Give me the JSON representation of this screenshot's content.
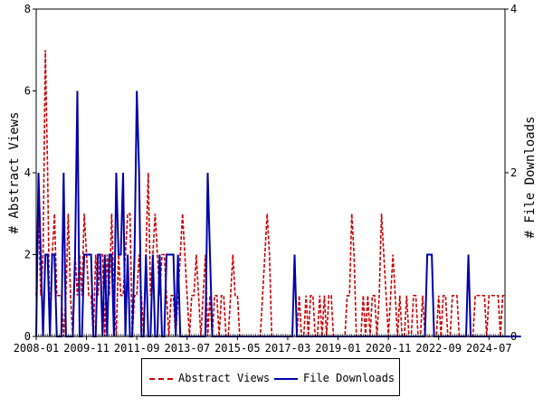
{
  "chart_data": {
    "type": "line",
    "xlabel": "",
    "ylabel": "# Abstract Views",
    "ylabel_right": "# File Downloads",
    "ylim": [
      0,
      8
    ],
    "ylim_right": [
      0,
      4
    ],
    "yticks": [
      "0",
      "2",
      "4",
      "6",
      "8"
    ],
    "yticks_right": [
      "0",
      "2",
      "4"
    ],
    "x_tick_labels": [
      "2008-01",
      "2009-11",
      "2011-09",
      "2013-07",
      "2015-05",
      "2017-03",
      "2019-01",
      "2020-11",
      "2022-09",
      "2024-07"
    ],
    "x_start": "2008-01",
    "x_end": "2025-12",
    "grid": false,
    "legend_position": "bottom",
    "series": [
      {
        "name": "Abstract Views",
        "axis": "left",
        "color": "#cc0000",
        "style": "dashed",
        "values": [
          1,
          3,
          1,
          2,
          7,
          4,
          0,
          2,
          3,
          1,
          1,
          1,
          0,
          1,
          3,
          1,
          0,
          2,
          1,
          2,
          1,
          3,
          2,
          1,
          1,
          0,
          2,
          1,
          2,
          2,
          0,
          2,
          1,
          3,
          1,
          0,
          2,
          1,
          1,
          2,
          3,
          3,
          0,
          1,
          1,
          2,
          1,
          0,
          2,
          4,
          1,
          2,
          3,
          2,
          1,
          2,
          2,
          1,
          0,
          1,
          1,
          0,
          1,
          2,
          3,
          2,
          1,
          0,
          1,
          1,
          2,
          1,
          0,
          1,
          2,
          0,
          1,
          0,
          1,
          1,
          0,
          1,
          1,
          0,
          0,
          1,
          2,
          1,
          1,
          0,
          0,
          0,
          0,
          0,
          0,
          0,
          0,
          0,
          0,
          1,
          2,
          3,
          2,
          0,
          0,
          0,
          0,
          0,
          0,
          0,
          0,
          0,
          0,
          0,
          0,
          1,
          0,
          0,
          1,
          0,
          1,
          1,
          0,
          0,
          1,
          0,
          1,
          0,
          1,
          1,
          0,
          0,
          0,
          0,
          0,
          0,
          1,
          1,
          3,
          2,
          0,
          0,
          0,
          1,
          0,
          1,
          0,
          1,
          1,
          0,
          1,
          3,
          2,
          1,
          0,
          1,
          2,
          1,
          0,
          1,
          0,
          0,
          1,
          0,
          0,
          1,
          1,
          0,
          0,
          1,
          0,
          0,
          0,
          0,
          0,
          0,
          1,
          0,
          1,
          1,
          0,
          0,
          1,
          1,
          1,
          0,
          0,
          0,
          0,
          0,
          0,
          0,
          1,
          1,
          1,
          1,
          1,
          0,
          1,
          1,
          1,
          1,
          1,
          0,
          1,
          1
        ]
      },
      {
        "name": "File Downloads",
        "axis": "right",
        "color": "#0000aa",
        "style": "solid",
        "values": [
          0,
          2,
          1,
          0,
          1,
          1,
          0,
          1,
          1,
          0,
          0,
          0,
          2,
          0,
          0,
          0,
          0,
          1,
          3,
          0,
          0,
          1,
          1,
          1,
          1,
          0,
          0,
          1,
          1,
          0,
          1,
          0,
          1,
          1,
          0,
          2,
          1,
          1,
          2,
          0,
          1,
          0,
          0,
          1,
          3,
          2,
          0,
          0,
          1,
          0,
          0,
          1,
          0,
          0,
          1,
          0,
          0,
          1,
          1,
          1,
          1,
          0,
          1,
          0,
          0,
          0,
          0,
          0,
          0,
          0,
          0,
          0,
          0,
          0,
          0,
          2,
          1,
          0,
          0,
          0,
          0,
          0,
          0,
          0,
          0,
          0,
          0,
          0,
          0,
          0,
          0,
          0,
          0,
          0,
          0,
          0,
          0,
          0,
          0,
          0,
          0,
          0,
          0,
          0,
          0,
          0,
          0,
          0,
          0,
          0,
          0,
          0,
          0,
          1,
          0,
          0,
          0,
          0,
          0,
          0,
          0,
          0,
          0,
          0,
          0,
          0,
          0,
          0,
          0,
          0,
          0,
          0,
          0,
          0,
          0,
          0,
          0,
          0,
          0,
          0,
          0,
          0,
          0,
          0,
          0,
          0,
          0,
          0,
          0,
          0,
          0,
          0,
          0,
          0,
          0,
          0,
          0,
          0,
          0,
          0,
          0,
          0,
          0,
          0,
          0,
          0,
          0,
          0,
          0,
          0,
          0,
          1,
          1,
          1,
          0,
          0,
          0,
          0,
          0,
          0,
          0,
          0,
          0,
          0,
          0,
          0,
          0,
          0,
          0,
          1,
          0,
          0,
          0,
          0,
          0,
          0,
          0,
          0,
          0,
          0,
          0,
          0,
          0,
          0,
          0,
          0,
          0,
          0,
          0,
          0,
          0,
          0,
          0
        ]
      }
    ]
  }
}
